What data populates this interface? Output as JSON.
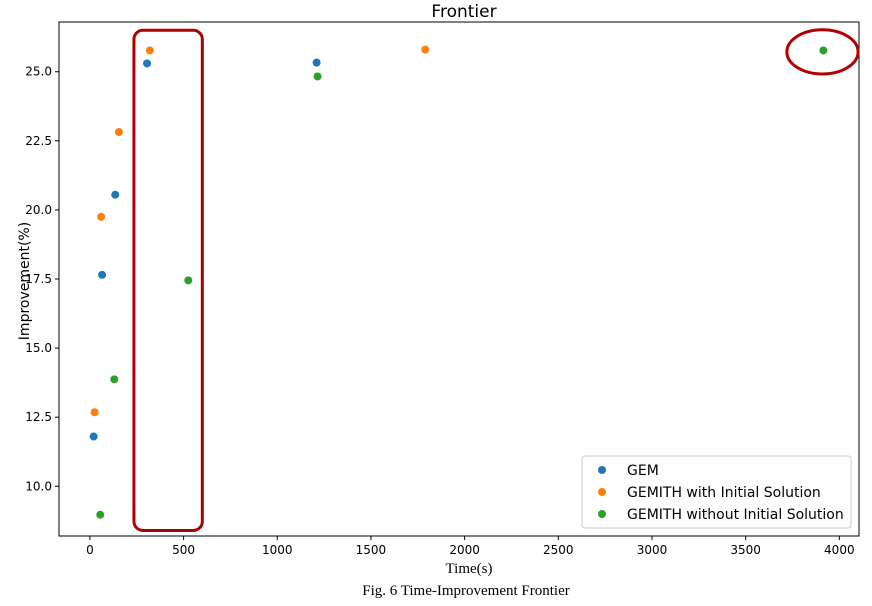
{
  "caption": "Fig. 6 Time-Improvement Frontier",
  "chart_data": {
    "type": "scatter",
    "title": "Frontier",
    "xlabel": "Time(s)",
    "ylabel": "Improvement(%)",
    "xlim": [
      -165,
      4105
    ],
    "ylim": [
      8.2,
      26.8
    ],
    "xticks": [
      0,
      500,
      1000,
      1500,
      2000,
      2500,
      3000,
      3500,
      4000
    ],
    "yticks": [
      10.0,
      12.5,
      15.0,
      17.5,
      20.0,
      22.5,
      25.0
    ],
    "xtick_labels": [
      "0",
      "500",
      "1000",
      "1500",
      "2000",
      "2500",
      "3000",
      "3500",
      "4000"
    ],
    "ytick_labels": [
      "10.0",
      "12.5",
      "15.0",
      "17.5",
      "20.0",
      "22.5",
      "25.0"
    ],
    "grid": false,
    "legend_position": "lower-right",
    "series": [
      {
        "name": "GEM",
        "color": "#1f77b4",
        "points": [
          [
            20,
            11.8
          ],
          [
            65,
            17.65
          ],
          [
            135,
            20.55
          ],
          [
            305,
            25.3
          ],
          [
            1210,
            25.33
          ]
        ]
      },
      {
        "name": "GEMITH with Initial Solution",
        "color": "#ff7f0e",
        "points": [
          [
            25,
            12.68
          ],
          [
            60,
            19.75
          ],
          [
            155,
            22.82
          ],
          [
            320,
            25.77
          ],
          [
            1790,
            25.8
          ]
        ]
      },
      {
        "name": "GEMITH without Initial Solution",
        "color": "#2ca02c",
        "points": [
          [
            55,
            8.97
          ],
          [
            130,
            13.87
          ],
          [
            525,
            17.45
          ],
          [
            1215,
            24.83
          ],
          [
            3915,
            25.77
          ]
        ]
      }
    ],
    "annotations": [
      {
        "type": "rounded-rect",
        "color": "#b00000",
        "x_range": [
          235,
          600
        ],
        "y_range": [
          8.4,
          26.5
        ]
      },
      {
        "type": "ellipse",
        "color": "#b00000",
        "center": [
          3910,
          25.72
        ],
        "x_radius": 190,
        "y_radius": 0.8
      }
    ]
  }
}
